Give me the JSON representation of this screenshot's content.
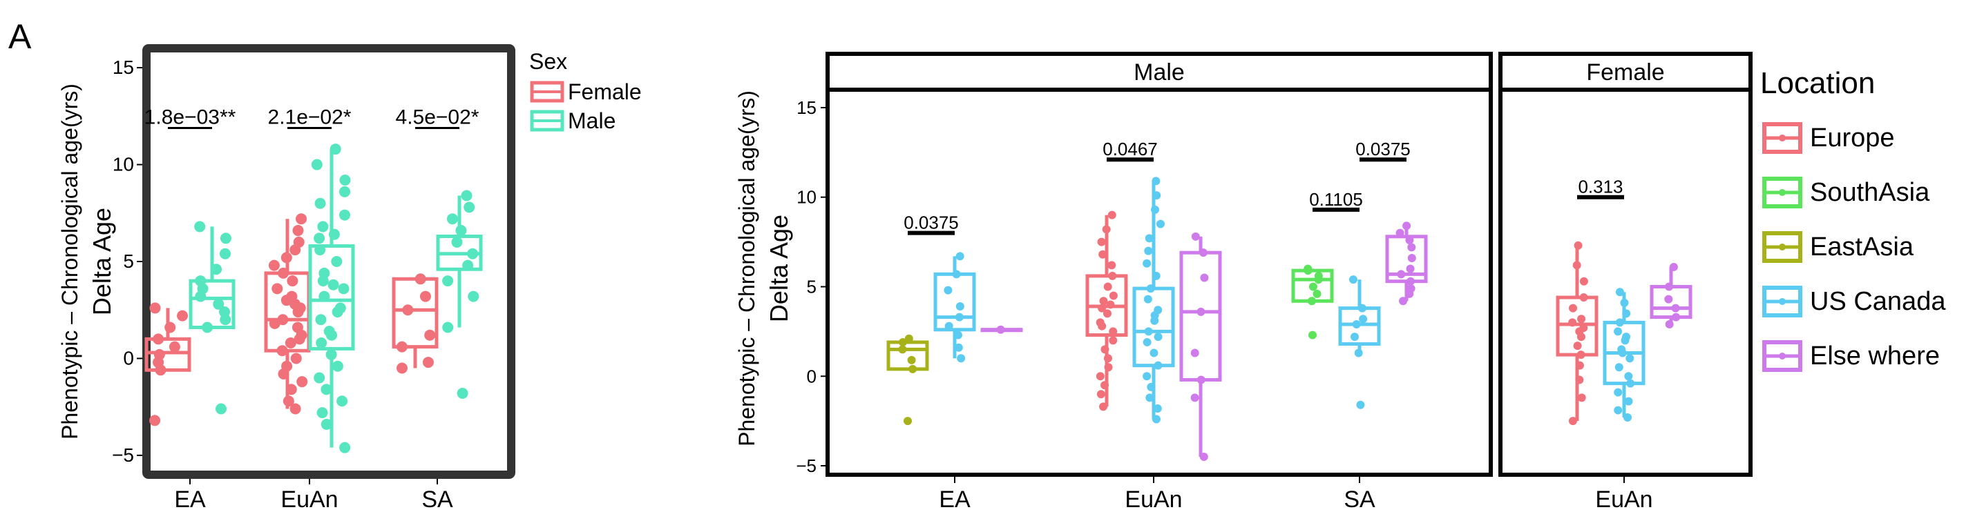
{
  "colors": {
    "female": "#F0717A",
    "male": "#55E6C0",
    "Europe": "#F0717A",
    "SouthAsia": "#5BE35B",
    "EastAsia": "#A7B21A",
    "US Canada": "#5BCBF2",
    "Else where": "#CF7AEB"
  },
  "panel_label": "A",
  "chart_data": [
    {
      "type": "box",
      "ylabel_line1": "Phenotypic – Chronological age(yrs)",
      "ylabel_line2": "Delta Age",
      "xlabel": "",
      "ylim": [
        -6,
        16
      ],
      "yticks": [
        -5,
        0,
        5,
        10,
        15
      ],
      "ytick_labels": [
        "−5",
        "0",
        "5",
        "10",
        "15"
      ],
      "categories": [
        "EA",
        "EuAn",
        "SA"
      ],
      "legend": {
        "title": "Sex",
        "entries": [
          "Female",
          "Male"
        ],
        "placement": "right"
      },
      "series": [
        {
          "name": "Female",
          "color_key": "female",
          "boxes": [
            {
              "category": "EA",
              "q1": -0.6,
              "median": 0.3,
              "q3": 1.0,
              "wlo": -0.6,
              "whi": 2.6,
              "points": [
                2.6,
                2.2,
                1.6,
                1.0,
                0.6,
                0.2,
                -0.2,
                -0.6,
                -3.2
              ]
            },
            {
              "category": "EuAn",
              "q1": 0.4,
              "median": 2.0,
              "q3": 4.4,
              "wlo": -2.6,
              "whi": 7.2,
              "points": [
                7.2,
                6.6,
                6.0,
                5.2,
                4.8,
                4.4,
                4.0,
                3.6,
                3.2,
                2.8,
                2.4,
                2.0,
                1.6,
                1.2,
                0.8,
                0.4,
                0.0,
                -0.4,
                -0.8,
                -1.2,
                -1.6,
                -2.2,
                -2.6,
                5.6,
                3.0,
                1.8,
                2.6,
                1.0
              ]
            },
            {
              "category": "SA",
              "q1": 0.6,
              "median": 2.5,
              "q3": 4.1,
              "wlo": -0.5,
              "whi": 4.1,
              "points": [
                4.1,
                3.2,
                2.5,
                1.2,
                0.6,
                -0.2,
                -0.5
              ]
            }
          ]
        },
        {
          "name": "Male",
          "color_key": "male",
          "boxes": [
            {
              "category": "EA",
              "q1": 1.6,
              "median": 3.1,
              "q3": 4.0,
              "wlo": 1.6,
              "whi": 6.8,
              "points": [
                6.8,
                6.2,
                5.4,
                4.6,
                4.0,
                3.6,
                3.2,
                2.8,
                2.4,
                2.0,
                1.6,
                -2.6
              ]
            },
            {
              "category": "EuAn",
              "q1": 0.5,
              "median": 3.0,
              "q3": 5.8,
              "wlo": -4.6,
              "whi": 10.8,
              "points": [
                10.8,
                10.0,
                9.2,
                8.6,
                8.0,
                7.4,
                6.8,
                6.2,
                5.6,
                5.0,
                4.4,
                3.8,
                3.2,
                2.6,
                2.0,
                1.4,
                0.8,
                0.2,
                -0.4,
                -1.0,
                -1.6,
                -2.2,
                -2.8,
                -3.4,
                -4.6,
                4.0,
                2.4,
                6.4,
                1.2,
                3.6
              ]
            },
            {
              "category": "SA",
              "q1": 4.6,
              "median": 5.4,
              "q3": 6.3,
              "wlo": 1.6,
              "whi": 8.4,
              "points": [
                8.4,
                7.8,
                7.2,
                6.6,
                6.0,
                5.4,
                4.8,
                4.0,
                3.2,
                1.6,
                -1.8
              ]
            }
          ]
        }
      ],
      "annotations": [
        {
          "text": "1.8e−03**",
          "category": "EA",
          "y": 12.6
        },
        {
          "text": "2.1e−02*",
          "category": "EuAn",
          "y": 12.6
        },
        {
          "text": "4.5e−02*",
          "category": "SA",
          "y": 12.6
        }
      ]
    },
    {
      "type": "box",
      "ylabel_line1": "Phenotypic – Chronological age(yrs)",
      "ylabel_line2": "Delta Age",
      "ylim": [
        -5.5,
        16
      ],
      "yticks": [
        -5,
        0,
        5,
        10,
        15
      ],
      "ytick_labels": [
        "−5",
        "0",
        "5",
        "10",
        "15"
      ],
      "legend": {
        "title": "Location",
        "entries": [
          "Europe",
          "SouthAsia",
          "EastAsia",
          "US Canada",
          "Else where"
        ],
        "placement": "right"
      },
      "facets": [
        {
          "strip": "Male",
          "categories": [
            "EA",
            "EuAn",
            "SA"
          ],
          "groups": [
            {
              "category": "EA",
              "boxes": [
                {
                  "location": "EastAsia",
                  "q1": 0.4,
                  "median": 1.5,
                  "q3": 1.9,
                  "wlo": 0.4,
                  "whi": 2.1,
                  "points": [
                    2.1,
                    1.9,
                    1.5,
                    0.9,
                    0.4
                  ],
                  "outliers": [
                    -2.5
                  ]
                },
                {
                  "location": "US Canada",
                  "q1": 2.6,
                  "median": 3.3,
                  "q3": 5.7,
                  "wlo": 1.0,
                  "whi": 6.7,
                  "points": [
                    6.7,
                    5.7,
                    4.8,
                    3.9,
                    3.3,
                    2.8,
                    2.3,
                    1.6,
                    1.0
                  ]
                },
                {
                  "location": "Else where",
                  "q1": 2.6,
                  "median": 2.6,
                  "q3": 2.6,
                  "wlo": 2.6,
                  "whi": 2.6,
                  "points": [
                    2.6
                  ]
                }
              ]
            },
            {
              "category": "EuAn",
              "boxes": [
                {
                  "location": "Europe",
                  "q1": 2.3,
                  "median": 3.9,
                  "q3": 5.6,
                  "wlo": -1.7,
                  "whi": 9.0,
                  "points": [
                    9.0,
                    8.2,
                    7.5,
                    6.8,
                    6.2,
                    5.6,
                    5.0,
                    4.5,
                    4.0,
                    3.5,
                    3.0,
                    2.5,
                    2.0,
                    1.5,
                    1.0,
                    0.5,
                    0.0,
                    -0.5,
                    -1.0,
                    -1.7,
                    3.8,
                    4.2,
                    2.8
                  ]
                },
                {
                  "location": "US Canada",
                  "q1": 0.6,
                  "median": 2.5,
                  "q3": 4.9,
                  "wlo": -2.4,
                  "whi": 10.9,
                  "points": [
                    10.9,
                    10.1,
                    9.3,
                    8.5,
                    7.7,
                    7.0,
                    6.3,
                    5.6,
                    4.9,
                    4.3,
                    3.7,
                    3.1,
                    2.5,
                    1.9,
                    1.3,
                    0.6,
                    0.0,
                    -0.6,
                    -1.2,
                    -1.8,
                    -2.4,
                    2.2,
                    3.4
                  ]
                },
                {
                  "location": "Else where",
                  "q1": -0.2,
                  "median": 3.6,
                  "q3": 6.9,
                  "wlo": -4.5,
                  "whi": 7.8,
                  "points": [
                    7.8,
                    6.9,
                    5.5,
                    3.6,
                    1.3,
                    -0.2,
                    -1.2,
                    -4.5
                  ]
                }
              ]
            },
            {
              "category": "SA",
              "boxes": [
                {
                  "location": "SouthAsia",
                  "q1": 4.2,
                  "median": 5.4,
                  "q3": 5.9,
                  "wlo": 4.2,
                  "whi": 6.0,
                  "points": [
                    6.0,
                    5.9,
                    5.6,
                    5.4,
                    5.0,
                    4.6,
                    4.2
                  ],
                  "outliers": [
                    2.3
                  ]
                },
                {
                  "location": "US Canada",
                  "q1": 1.8,
                  "median": 2.9,
                  "q3": 3.8,
                  "wlo": 1.3,
                  "whi": 5.4,
                  "points": [
                    5.4,
                    3.8,
                    3.2,
                    2.9,
                    2.2,
                    1.3,
                    -1.6
                  ]
                },
                {
                  "location": "Else where",
                  "q1": 5.3,
                  "median": 5.7,
                  "q3": 7.8,
                  "wlo": 4.2,
                  "whi": 8.4,
                  "points": [
                    8.4,
                    8.0,
                    7.6,
                    7.2,
                    6.6,
                    6.0,
                    5.7,
                    5.3,
                    4.9,
                    4.6,
                    4.2
                  ]
                }
              ]
            }
          ],
          "annotations": [
            {
              "text": "0.0375",
              "between": [
                "EA",
                "EastAsia",
                "US Canada"
              ],
              "y": 8.0
            },
            {
              "text": "0.0467",
              "between": [
                "EuAn",
                "Europe",
                "US Canada"
              ],
              "y": 12.1
            },
            {
              "text": "0.1105",
              "between": [
                "SA",
                "SouthAsia",
                "US Canada"
              ],
              "y": 9.3
            },
            {
              "text": "0.0375",
              "between": [
                "SA",
                "US Canada",
                "Else where"
              ],
              "y": 12.1
            }
          ]
        },
        {
          "strip": "Female",
          "categories": [
            "EuAn"
          ],
          "groups": [
            {
              "category": "EuAn",
              "boxes": [
                {
                  "location": "Europe",
                  "q1": 1.2,
                  "median": 2.9,
                  "q3": 4.4,
                  "wlo": -2.5,
                  "whi": 7.3,
                  "points": [
                    7.3,
                    6.2,
                    5.3,
                    4.4,
                    3.8,
                    3.2,
                    2.7,
                    2.2,
                    1.7,
                    1.2,
                    0.6,
                    -0.2,
                    -1.2,
                    -2.5,
                    3.0,
                    2.5
                  ]
                },
                {
                  "location": "US Canada",
                  "q1": -0.4,
                  "median": 1.3,
                  "q3": 3.0,
                  "wlo": -2.3,
                  "whi": 4.7,
                  "points": [
                    4.7,
                    4.1,
                    3.5,
                    3.0,
                    2.5,
                    2.0,
                    1.5,
                    1.0,
                    0.5,
                    0.0,
                    -0.4,
                    -0.9,
                    -1.4,
                    -1.9,
                    -2.3,
                    1.3,
                    2.2
                  ]
                },
                {
                  "location": "Else where",
                  "q1": 3.3,
                  "median": 3.8,
                  "q3": 5.0,
                  "wlo": 2.9,
                  "whi": 6.1,
                  "points": [
                    6.1,
                    5.0,
                    4.3,
                    3.8,
                    3.3,
                    2.9
                  ]
                }
              ]
            }
          ],
          "annotations": [
            {
              "text": "0.313",
              "between": [
                "EuAn",
                "Europe",
                "US Canada"
              ],
              "y": 10.0
            }
          ]
        }
      ]
    }
  ]
}
